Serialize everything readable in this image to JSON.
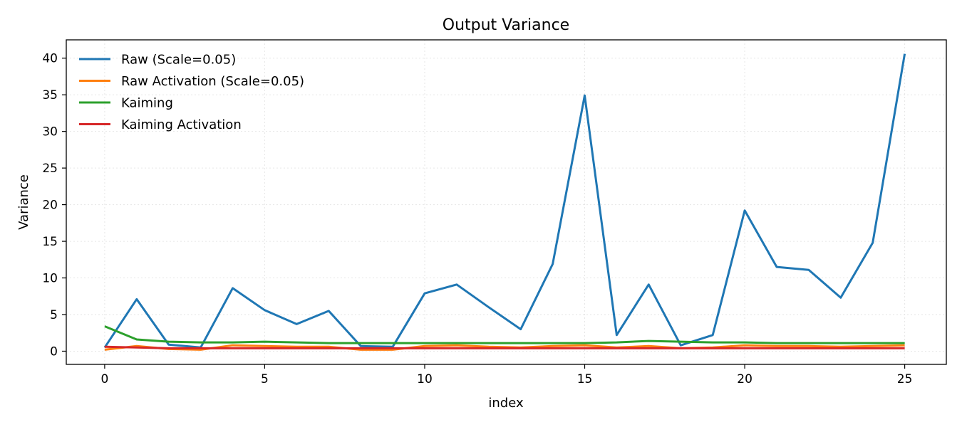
{
  "chart_data": {
    "type": "line",
    "title": "Output Variance",
    "xlabel": "index",
    "ylabel": "Variance",
    "xlim": [
      -1.2,
      26.3
    ],
    "ylim": [
      -1.8,
      42.5
    ],
    "xticks": [
      0,
      5,
      10,
      15,
      20,
      25
    ],
    "yticks": [
      0,
      5,
      10,
      15,
      20,
      25,
      30,
      35,
      40
    ],
    "grid": true,
    "legend_position": "top-left",
    "x": [
      0,
      1,
      2,
      3,
      4,
      5,
      6,
      7,
      8,
      9,
      10,
      11,
      12,
      13,
      14,
      15,
      16,
      17,
      18,
      19,
      20,
      21,
      22,
      23,
      24,
      25
    ],
    "series": [
      {
        "name": "Raw (Scale=0.05)",
        "color": "#1f77b4",
        "values": [
          0.5,
          7.1,
          0.9,
          0.5,
          8.6,
          5.6,
          3.7,
          5.5,
          0.7,
          0.6,
          7.9,
          9.1,
          6.0,
          3.0,
          11.9,
          34.9,
          2.2,
          9.1,
          0.8,
          2.2,
          19.2,
          11.5,
          11.1,
          7.3,
          14.8,
          40.6
        ]
      },
      {
        "name": "Raw Activation (Scale=0.05)",
        "color": "#ff7f0e",
        "values": [
          0.2,
          0.7,
          0.3,
          0.2,
          0.8,
          0.7,
          0.6,
          0.6,
          0.2,
          0.2,
          0.7,
          0.8,
          0.6,
          0.5,
          0.7,
          0.8,
          0.5,
          0.7,
          0.4,
          0.5,
          0.8,
          0.7,
          0.7,
          0.6,
          0.7,
          0.8
        ]
      },
      {
        "name": "Kaiming",
        "color": "#2ca02c",
        "values": [
          3.4,
          1.6,
          1.3,
          1.2,
          1.2,
          1.3,
          1.2,
          1.1,
          1.1,
          1.1,
          1.1,
          1.1,
          1.1,
          1.1,
          1.1,
          1.1,
          1.2,
          1.4,
          1.3,
          1.2,
          1.2,
          1.1,
          1.1,
          1.1,
          1.1,
          1.1
        ]
      },
      {
        "name": "Kaiming Activation",
        "color": "#d62728",
        "values": [
          0.6,
          0.5,
          0.4,
          0.4,
          0.4,
          0.4,
          0.4,
          0.4,
          0.4,
          0.4,
          0.4,
          0.4,
          0.4,
          0.4,
          0.4,
          0.4,
          0.4,
          0.4,
          0.4,
          0.4,
          0.4,
          0.4,
          0.4,
          0.4,
          0.4,
          0.4
        ]
      }
    ]
  }
}
